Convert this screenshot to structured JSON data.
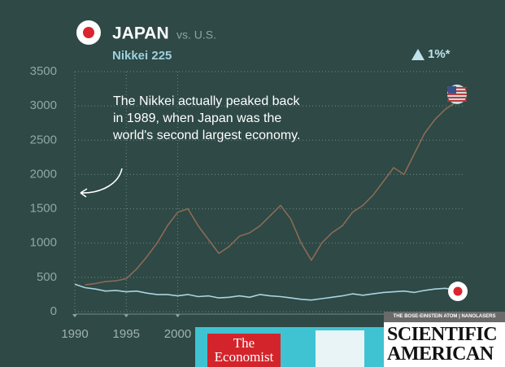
{
  "chart_data": {
    "type": "line",
    "title": "JAPAN",
    "title_suffix": "vs. U.S.",
    "subtitle": "Nikkei 225",
    "change": "1%*",
    "annotation": "The Nikkei actually peaked back in 1989, when Japan was the world's second largest economy.",
    "x": [
      1990,
      1991,
      1992,
      1993,
      1994,
      1995,
      1996,
      1997,
      1998,
      1999,
      2000,
      2001,
      2002,
      2003,
      2004,
      2005,
      2006,
      2007,
      2008,
      2009,
      2010,
      2011,
      2012,
      2013,
      2014,
      2015,
      2016,
      2017,
      2018,
      2019,
      2020,
      2021,
      2022,
      2023,
      2024,
      2025,
      2026,
      2027
    ],
    "series": [
      {
        "color": "#8b6b55",
        "values": [
          null,
          390,
          410,
          440,
          450,
          480,
          620,
          800,
          1000,
          1250,
          1450,
          1500,
          1250,
          1050,
          850,
          950,
          1100,
          1150,
          1250,
          1400,
          1550,
          1350,
          1000,
          750,
          1000,
          1150,
          1250,
          1450,
          1550,
          1700,
          1900,
          2100,
          2000,
          2300,
          2600,
          2800,
          2950,
          3050
        ]
      },
      {
        "color": "#a9d4e0",
        "values": [
          400,
          350,
          330,
          300,
          310,
          290,
          300,
          270,
          250,
          250,
          230,
          250,
          220,
          230,
          200,
          210,
          230,
          210,
          250,
          230,
          220,
          200,
          180,
          170,
          190,
          210,
          230,
          260,
          240,
          260,
          280,
          290,
          300,
          280,
          310,
          330,
          340,
          320
        ]
      }
    ],
    "xlim": [
      1990,
      2027
    ],
    "xticks": [
      1990,
      1995,
      2000
    ],
    "ylim": [
      0,
      3500
    ],
    "yticks": [
      0,
      500,
      1000,
      1500,
      2000,
      2500,
      3000,
      3500
    ],
    "grid": true
  },
  "overlays": {
    "economist": "The Economist",
    "scientific_american_banner": "THE BOSE-EINSTEIN ATOM | NANOLASERS",
    "scientific_american": "SCIENTIFIC AMERICAN"
  }
}
